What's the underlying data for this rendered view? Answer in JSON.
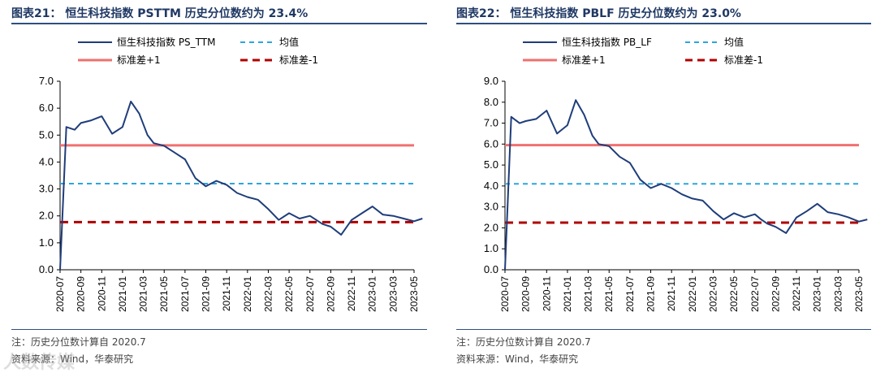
{
  "colors": {
    "series": "#1f3d7a",
    "mean": "#2ba5e0",
    "plus_sd": "#f07070",
    "minus_sd": "#b00000",
    "heading": "#1f3864"
  },
  "chart_data": [
    {
      "type": "line",
      "title": "图表21：  恒生科技指数 PSTTM 历史分位数约为 23.4%",
      "series_name": "恒生科技指数 PS_TTM",
      "legend": [
        "恒生科技指数 PS_TTM",
        "均值",
        "标准差+1",
        "标准差-1"
      ],
      "ylim": [
        0,
        7
      ],
      "yticks": [
        "0.0",
        "1.0",
        "2.0",
        "3.0",
        "4.0",
        "5.0",
        "6.0",
        "7.0"
      ],
      "xticks": [
        "2020-07",
        "2020-09",
        "2020-11",
        "2021-01",
        "2021-03",
        "2021-05",
        "2021-07",
        "2021-09",
        "2021-11",
        "2022-01",
        "2022-03",
        "2022-05",
        "2022-07",
        "2022-09",
        "2022-11",
        "2023-01",
        "2023-03",
        "2023-05"
      ],
      "mean": 3.2,
      "plus_1sd": 4.62,
      "minus_1sd": 1.77,
      "x": [
        0,
        0.3,
        0.7,
        1.0,
        1.5,
        2.0,
        2.5,
        3.0,
        3.4,
        3.8,
        4.2,
        4.5,
        5.0,
        5.5,
        6.0,
        6.5,
        7.0,
        7.5,
        8.0,
        8.5,
        9.0,
        9.5,
        10.0,
        10.5,
        11.0,
        11.5,
        12.0,
        12.3,
        12.6,
        13.0,
        13.5,
        14.0,
        14.5,
        15.0,
        15.5,
        16.0,
        16.5,
        17.0,
        17.4
      ],
      "y": [
        0.0,
        5.3,
        5.2,
        5.45,
        5.55,
        5.7,
        5.05,
        5.3,
        6.25,
        5.8,
        5.0,
        4.7,
        4.6,
        4.35,
        4.1,
        3.4,
        3.1,
        3.3,
        3.15,
        2.85,
        2.7,
        2.6,
        2.25,
        1.85,
        2.1,
        1.9,
        2.0,
        1.85,
        1.7,
        1.6,
        1.3,
        1.85,
        2.1,
        2.35,
        2.05,
        2.0,
        1.9,
        1.8,
        1.9
      ],
      "notes": [
        "注：历史分位数计算自 2020.7",
        "资料来源：Wind，华泰研究"
      ]
    },
    {
      "type": "line",
      "title": "图表22：  恒生科技指数 PBLF 历史分位数约为 23.0%",
      "series_name": "恒生科技指数 PB_LF",
      "legend": [
        "恒生科技指数 PB_LF",
        "均值",
        "标准差+1",
        "标准差-1"
      ],
      "ylim": [
        0,
        9
      ],
      "yticks": [
        "0.0",
        "1.0",
        "2.0",
        "3.0",
        "4.0",
        "5.0",
        "6.0",
        "7.0",
        "8.0",
        "9.0"
      ],
      "xticks": [
        "2020-07",
        "2020-09",
        "2020-11",
        "2021-01",
        "2021-03",
        "2021-05",
        "2021-07",
        "2021-09",
        "2021-11",
        "2022-01",
        "2022-03",
        "2022-05",
        "2022-07",
        "2022-09",
        "2022-11",
        "2023-01",
        "2023-03",
        "2023-05"
      ],
      "mean": 4.1,
      "plus_1sd": 5.95,
      "minus_1sd": 2.25,
      "x": [
        0,
        0.3,
        0.7,
        1.0,
        1.5,
        2.0,
        2.5,
        3.0,
        3.4,
        3.8,
        4.2,
        4.5,
        5.0,
        5.5,
        6.0,
        6.5,
        7.0,
        7.5,
        8.0,
        8.5,
        9.0,
        9.5,
        10.0,
        10.5,
        11.0,
        11.5,
        12.0,
        12.3,
        12.6,
        13.0,
        13.5,
        14.0,
        14.5,
        15.0,
        15.5,
        16.0,
        16.5,
        17.0,
        17.4
      ],
      "y": [
        0.0,
        7.3,
        7.0,
        7.1,
        7.2,
        7.6,
        6.5,
        6.9,
        8.1,
        7.4,
        6.4,
        6.0,
        5.9,
        5.4,
        5.1,
        4.3,
        3.9,
        4.1,
        3.9,
        3.6,
        3.4,
        3.3,
        2.8,
        2.4,
        2.7,
        2.5,
        2.65,
        2.4,
        2.2,
        2.05,
        1.75,
        2.5,
        2.8,
        3.15,
        2.75,
        2.65,
        2.5,
        2.3,
        2.4
      ],
      "notes": [
        "注：历史分位数计算自 2020.7",
        "资料来源：Wind，华泰研究"
      ]
    }
  ],
  "watermark": "人数传媒"
}
